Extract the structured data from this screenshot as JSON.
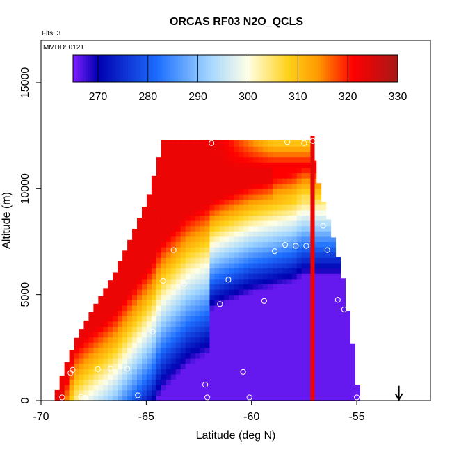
{
  "chart_data": {
    "type": "heatmap",
    "title": "ORCAS RF03 N2O_QCLS",
    "subtitle_flights": "Flts: 3",
    "subtitle_date": "MMDD: 0121",
    "xlabel": "Latitude (deg N)",
    "ylabel": "Altitude (m)",
    "xlim": [
      -70,
      -51.5
    ],
    "ylim": [
      0,
      17000
    ],
    "x_ticks": [
      "-70",
      "-65",
      "-60",
      "-55"
    ],
    "x_tick_values": [
      -70,
      -65,
      -60,
      -55
    ],
    "y_ticks": [
      "0",
      "5000",
      "10000",
      "15000"
    ],
    "y_tick_values": [
      0,
      5000,
      10000,
      15000
    ],
    "colorbar": {
      "min": 265,
      "max": 330,
      "ticks": [
        "270",
        "280",
        "290",
        "300",
        "310",
        "320",
        "330"
      ],
      "tick_values": [
        270,
        280,
        290,
        300,
        310,
        320,
        330
      ],
      "colors": [
        "#7f1fff",
        "#0000b0",
        "#1e6fff",
        "#9fd4ff",
        "#ffffe6",
        "#ffd21a",
        "#ff9a00",
        "#ff0000",
        "#a81818"
      ],
      "color_stops": [
        265,
        270,
        282,
        292,
        300,
        308,
        314,
        321,
        330
      ]
    },
    "background_value": 323,
    "observations": [
      {
        "lat": -69.0,
        "alt": 150
      },
      {
        "lat": -68.1,
        "alt": 180
      },
      {
        "lat": -67.9,
        "alt": 130
      },
      {
        "lat": -68.5,
        "alt": 1450
      },
      {
        "lat": -68.6,
        "alt": 1300
      },
      {
        "lat": -67.3,
        "alt": 1480
      },
      {
        "lat": -66.7,
        "alt": 1500
      },
      {
        "lat": -65.9,
        "alt": 1500
      },
      {
        "lat": -65.4,
        "alt": 250
      },
      {
        "lat": -64.7,
        "alt": 3250
      },
      {
        "lat": -64.2,
        "alt": 5650
      },
      {
        "lat": -63.7,
        "alt": 7100
      },
      {
        "lat": -63.2,
        "alt": 5500
      },
      {
        "lat": -62.2,
        "alt": 750
      },
      {
        "lat": -62.1,
        "alt": 150
      },
      {
        "lat": -61.5,
        "alt": 4550
      },
      {
        "lat": -61.1,
        "alt": 5700
      },
      {
        "lat": -60.4,
        "alt": 1350
      },
      {
        "lat": -60.1,
        "alt": 150
      },
      {
        "lat": -59.4,
        "alt": 4700
      },
      {
        "lat": -58.9,
        "alt": 7050
      },
      {
        "lat": -58.4,
        "alt": 7350
      },
      {
        "lat": -57.9,
        "alt": 7300
      },
      {
        "lat": -57.4,
        "alt": 7300
      },
      {
        "lat": -56.6,
        "alt": 8250
      },
      {
        "lat": -56.4,
        "alt": 7100
      },
      {
        "lat": -55.9,
        "alt": 4750
      },
      {
        "lat": -55.6,
        "alt": 4300
      },
      {
        "lat": -55.0,
        "alt": 150
      },
      {
        "lat": -64.5,
        "alt": 12100
      },
      {
        "lat": -61.9,
        "alt": 12150
      },
      {
        "lat": -58.3,
        "alt": 12200
      },
      {
        "lat": -57.5,
        "alt": 12150
      },
      {
        "lat": -57.1,
        "alt": 12250
      }
    ],
    "arrow": {
      "lat": -53.0,
      "alt": 700
    }
  }
}
